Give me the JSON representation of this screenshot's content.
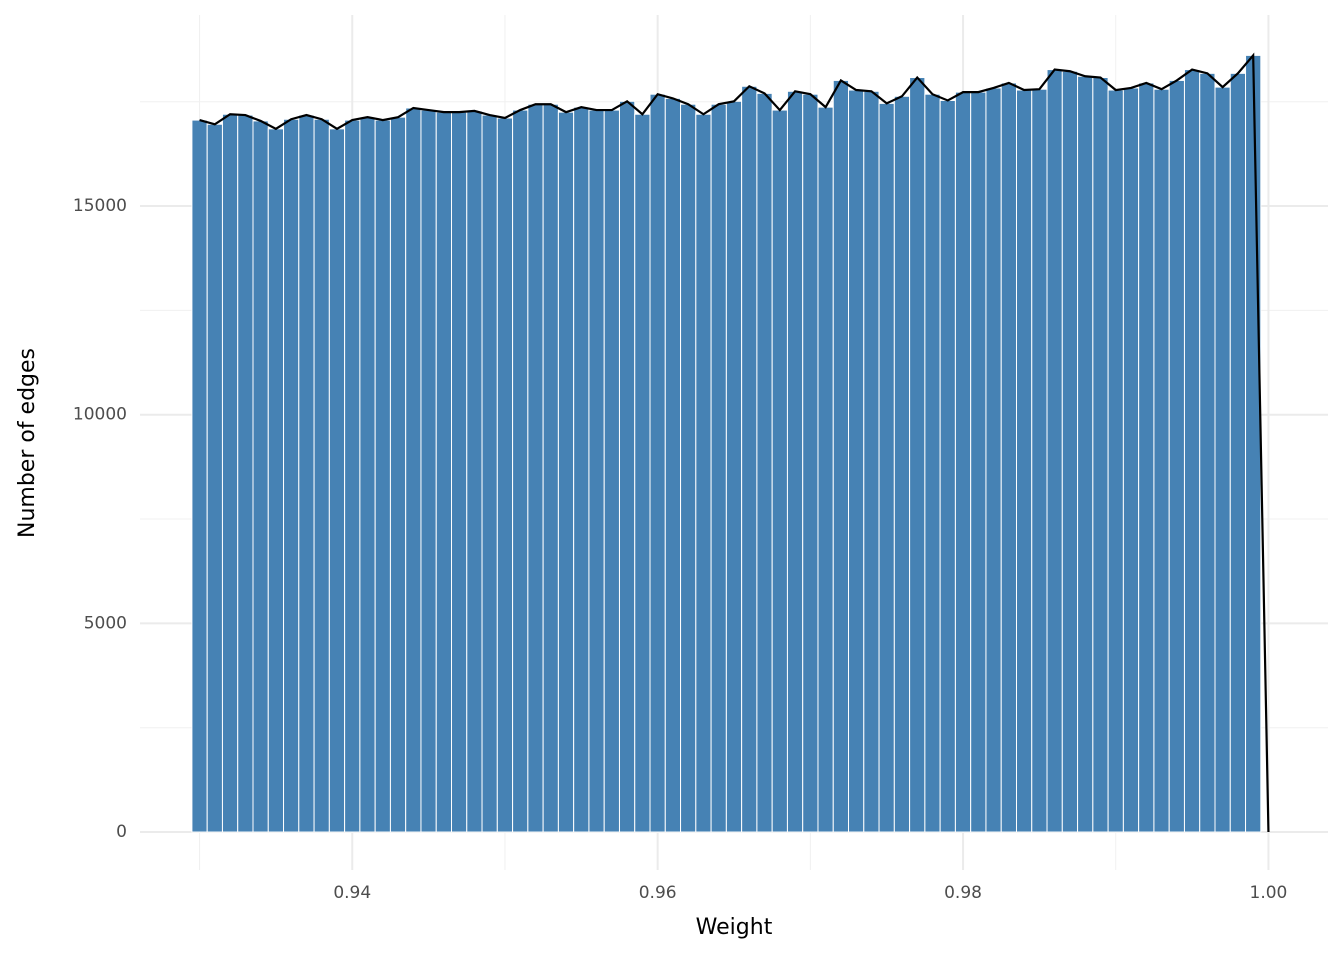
{
  "chart_data": {
    "type": "histogram",
    "x_label": "Weight",
    "y_label": "Number of edges",
    "color": "#4682b4",
    "line_color": "#000000",
    "bins": [
      0.9295,
      0.9305,
      0.9315,
      0.9325,
      0.9335,
      0.9345,
      0.9355,
      0.9365,
      0.9375,
      0.9385,
      0.9395,
      0.9405,
      0.9415,
      0.9425,
      0.9435,
      0.9445,
      0.9455,
      0.9465,
      0.9475,
      0.9485,
      0.9495,
      0.9505,
      0.9515,
      0.9525,
      0.9535,
      0.9545,
      0.9555,
      0.9565,
      0.9575,
      0.9585,
      0.9595,
      0.9605,
      0.9615,
      0.9625,
      0.9635,
      0.9645,
      0.9655,
      0.9665,
      0.9675,
      0.9685,
      0.9695,
      0.9705,
      0.9715,
      0.9725,
      0.9735,
      0.9745,
      0.9755,
      0.9765,
      0.9775,
      0.9785,
      0.9795,
      0.9805,
      0.9815,
      0.9825,
      0.9835,
      0.9845,
      0.9855,
      0.9865,
      0.9875,
      0.9885,
      0.9895,
      0.9905,
      0.9915,
      0.9925,
      0.9935,
      0.9945,
      0.9955,
      0.9965,
      0.9975,
      0.9985,
      0.9995
    ],
    "counts": [
      17060,
      16960,
      17200,
      17180,
      17040,
      16850,
      17080,
      17180,
      17080,
      16850,
      17060,
      17130,
      17060,
      17130,
      17350,
      17300,
      17250,
      17250,
      17280,
      17180,
      17110,
      17300,
      17440,
      17440,
      17250,
      17370,
      17300,
      17300,
      17510,
      17200,
      17680,
      17580,
      17440,
      17200,
      17440,
      17510,
      17870,
      17700,
      17300,
      17750,
      17680,
      17370,
      18010,
      17780,
      17750,
      17460,
      17630,
      18080,
      17680,
      17530,
      17730,
      17730,
      17830,
      17950,
      17780,
      17800,
      18270,
      18230,
      18110,
      18080,
      17780,
      17830,
      17950,
      17800,
      18010,
      18270,
      18180,
      17850,
      18180,
      18610
    ],
    "line": {
      "x": [
        0.93,
        0.931,
        0.932,
        0.933,
        0.934,
        0.935,
        0.936,
        0.937,
        0.938,
        0.939,
        0.94,
        0.941,
        0.942,
        0.943,
        0.944,
        0.945,
        0.946,
        0.947,
        0.948,
        0.949,
        0.95,
        0.951,
        0.952,
        0.953,
        0.954,
        0.955,
        0.956,
        0.957,
        0.958,
        0.959,
        0.96,
        0.961,
        0.962,
        0.963,
        0.964,
        0.965,
        0.966,
        0.967,
        0.968,
        0.969,
        0.97,
        0.971,
        0.972,
        0.973,
        0.974,
        0.975,
        0.976,
        0.977,
        0.978,
        0.979,
        0.98,
        0.981,
        0.982,
        0.983,
        0.984,
        0.985,
        0.986,
        0.987,
        0.988,
        0.989,
        0.99,
        0.991,
        0.992,
        0.993,
        0.994,
        0.995,
        0.996,
        0.997,
        0.998,
        0.999,
        1.0
      ],
      "values": [
        17060,
        16960,
        17200,
        17180,
        17040,
        16850,
        17080,
        17180,
        17080,
        16850,
        17060,
        17130,
        17060,
        17130,
        17350,
        17300,
        17250,
        17250,
        17280,
        17180,
        17110,
        17300,
        17440,
        17440,
        17250,
        17370,
        17300,
        17300,
        17510,
        17200,
        17680,
        17580,
        17440,
        17200,
        17440,
        17510,
        17870,
        17700,
        17300,
        17750,
        17680,
        17370,
        18010,
        17780,
        17750,
        17460,
        17630,
        18080,
        17680,
        17530,
        17730,
        17730,
        17830,
        17950,
        17780,
        17800,
        18270,
        18230,
        18110,
        18080,
        17780,
        17830,
        17950,
        17800,
        18010,
        18270,
        18180,
        17850,
        18180,
        18610,
        0
      ]
    },
    "xlim": [
      0.9261,
      1.0039
    ],
    "ylim": [
      -910,
      19578
    ],
    "xticks": [
      0.94,
      0.96,
      0.98,
      {
        "value": 1,
        "label": "1.00"
      }
    ],
    "yticks": [
      0,
      5000,
      10000,
      15000
    ],
    "xminorticks": [
      0.93,
      0.95,
      0.97,
      0.99
    ],
    "yminorticks": [
      2500,
      7500,
      12500,
      17500
    ],
    "grid": true
  }
}
